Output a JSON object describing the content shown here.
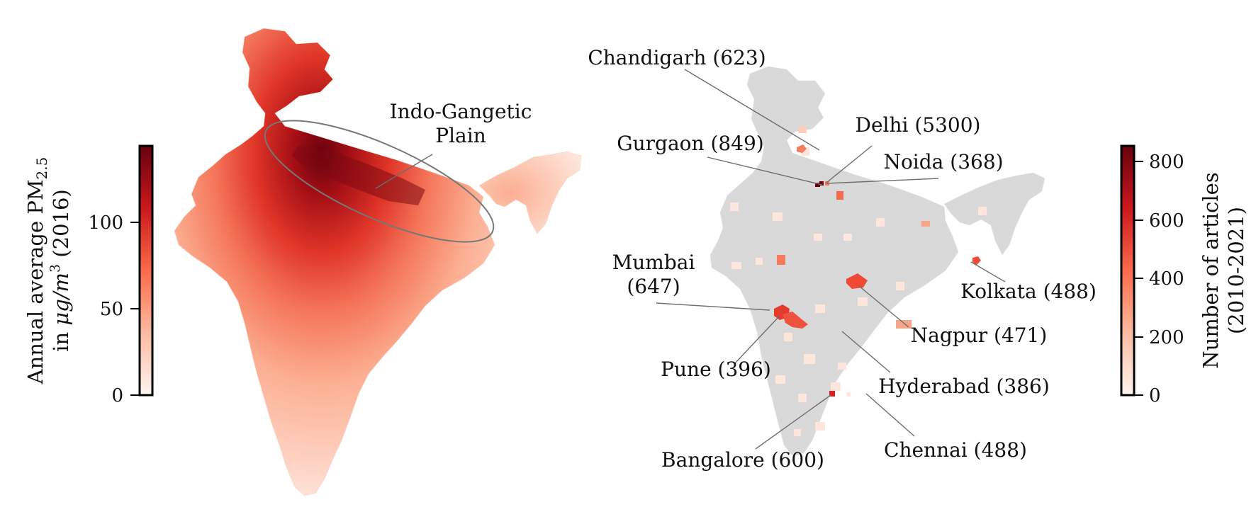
{
  "left_panel": {
    "colorbar": {
      "label_line1": "Annual average PM",
      "label_sub": "2.5",
      "label_line2_prefix": "in ",
      "label_unit": "μg/m",
      "label_unit_sup": "3",
      "label_year": " (2016)",
      "ticks": [
        "0",
        "50",
        "100"
      ],
      "tick_values": [
        0,
        50,
        100
      ],
      "range": [
        0,
        145
      ],
      "colormap": "Reds"
    },
    "annotation": {
      "line1": "Indo-Gangetic",
      "line2": "Plain"
    }
  },
  "right_panel": {
    "colorbar": {
      "label_line1": "Number of articles",
      "label_line2": "(2010-2021)",
      "ticks": [
        "0",
        "200",
        "400",
        "600",
        "800"
      ],
      "tick_values": [
        0,
        200,
        400,
        600,
        800
      ],
      "range": [
        0,
        850
      ],
      "colormap": "Reds"
    },
    "cities": [
      {
        "name": "Chandigarh",
        "label": "Chandigarh (623)",
        "articles": 623
      },
      {
        "name": "Delhi",
        "label": "Delhi (5300)",
        "articles": 5300
      },
      {
        "name": "Gurgaon",
        "label": "Gurgaon (849)",
        "articles": 849
      },
      {
        "name": "Noida",
        "label": "Noida (368)",
        "articles": 368
      },
      {
        "name": "Mumbai",
        "label_line1": "Mumbai",
        "label_line2": "(647)",
        "articles": 647
      },
      {
        "name": "Kolkata",
        "label": "Kolkata (488)",
        "articles": 488
      },
      {
        "name": "Nagpur",
        "label": "Nagpur (471)",
        "articles": 471
      },
      {
        "name": "Pune",
        "label": "Pune (396)",
        "articles": 396
      },
      {
        "name": "Hyderabad",
        "label": "Hyderabad (386)",
        "articles": 386
      },
      {
        "name": "Bangalore",
        "label": "Bangalore (600)",
        "articles": 600
      },
      {
        "name": "Chennai",
        "label": "Chennai (488)",
        "articles": 488
      }
    ]
  },
  "colors": {
    "dark_red": "#67000d",
    "mid_red": "#ef3b2c",
    "light_red": "#fee0d2",
    "map_gray": "#d9d9d9",
    "leader": "#6e6e6e"
  }
}
